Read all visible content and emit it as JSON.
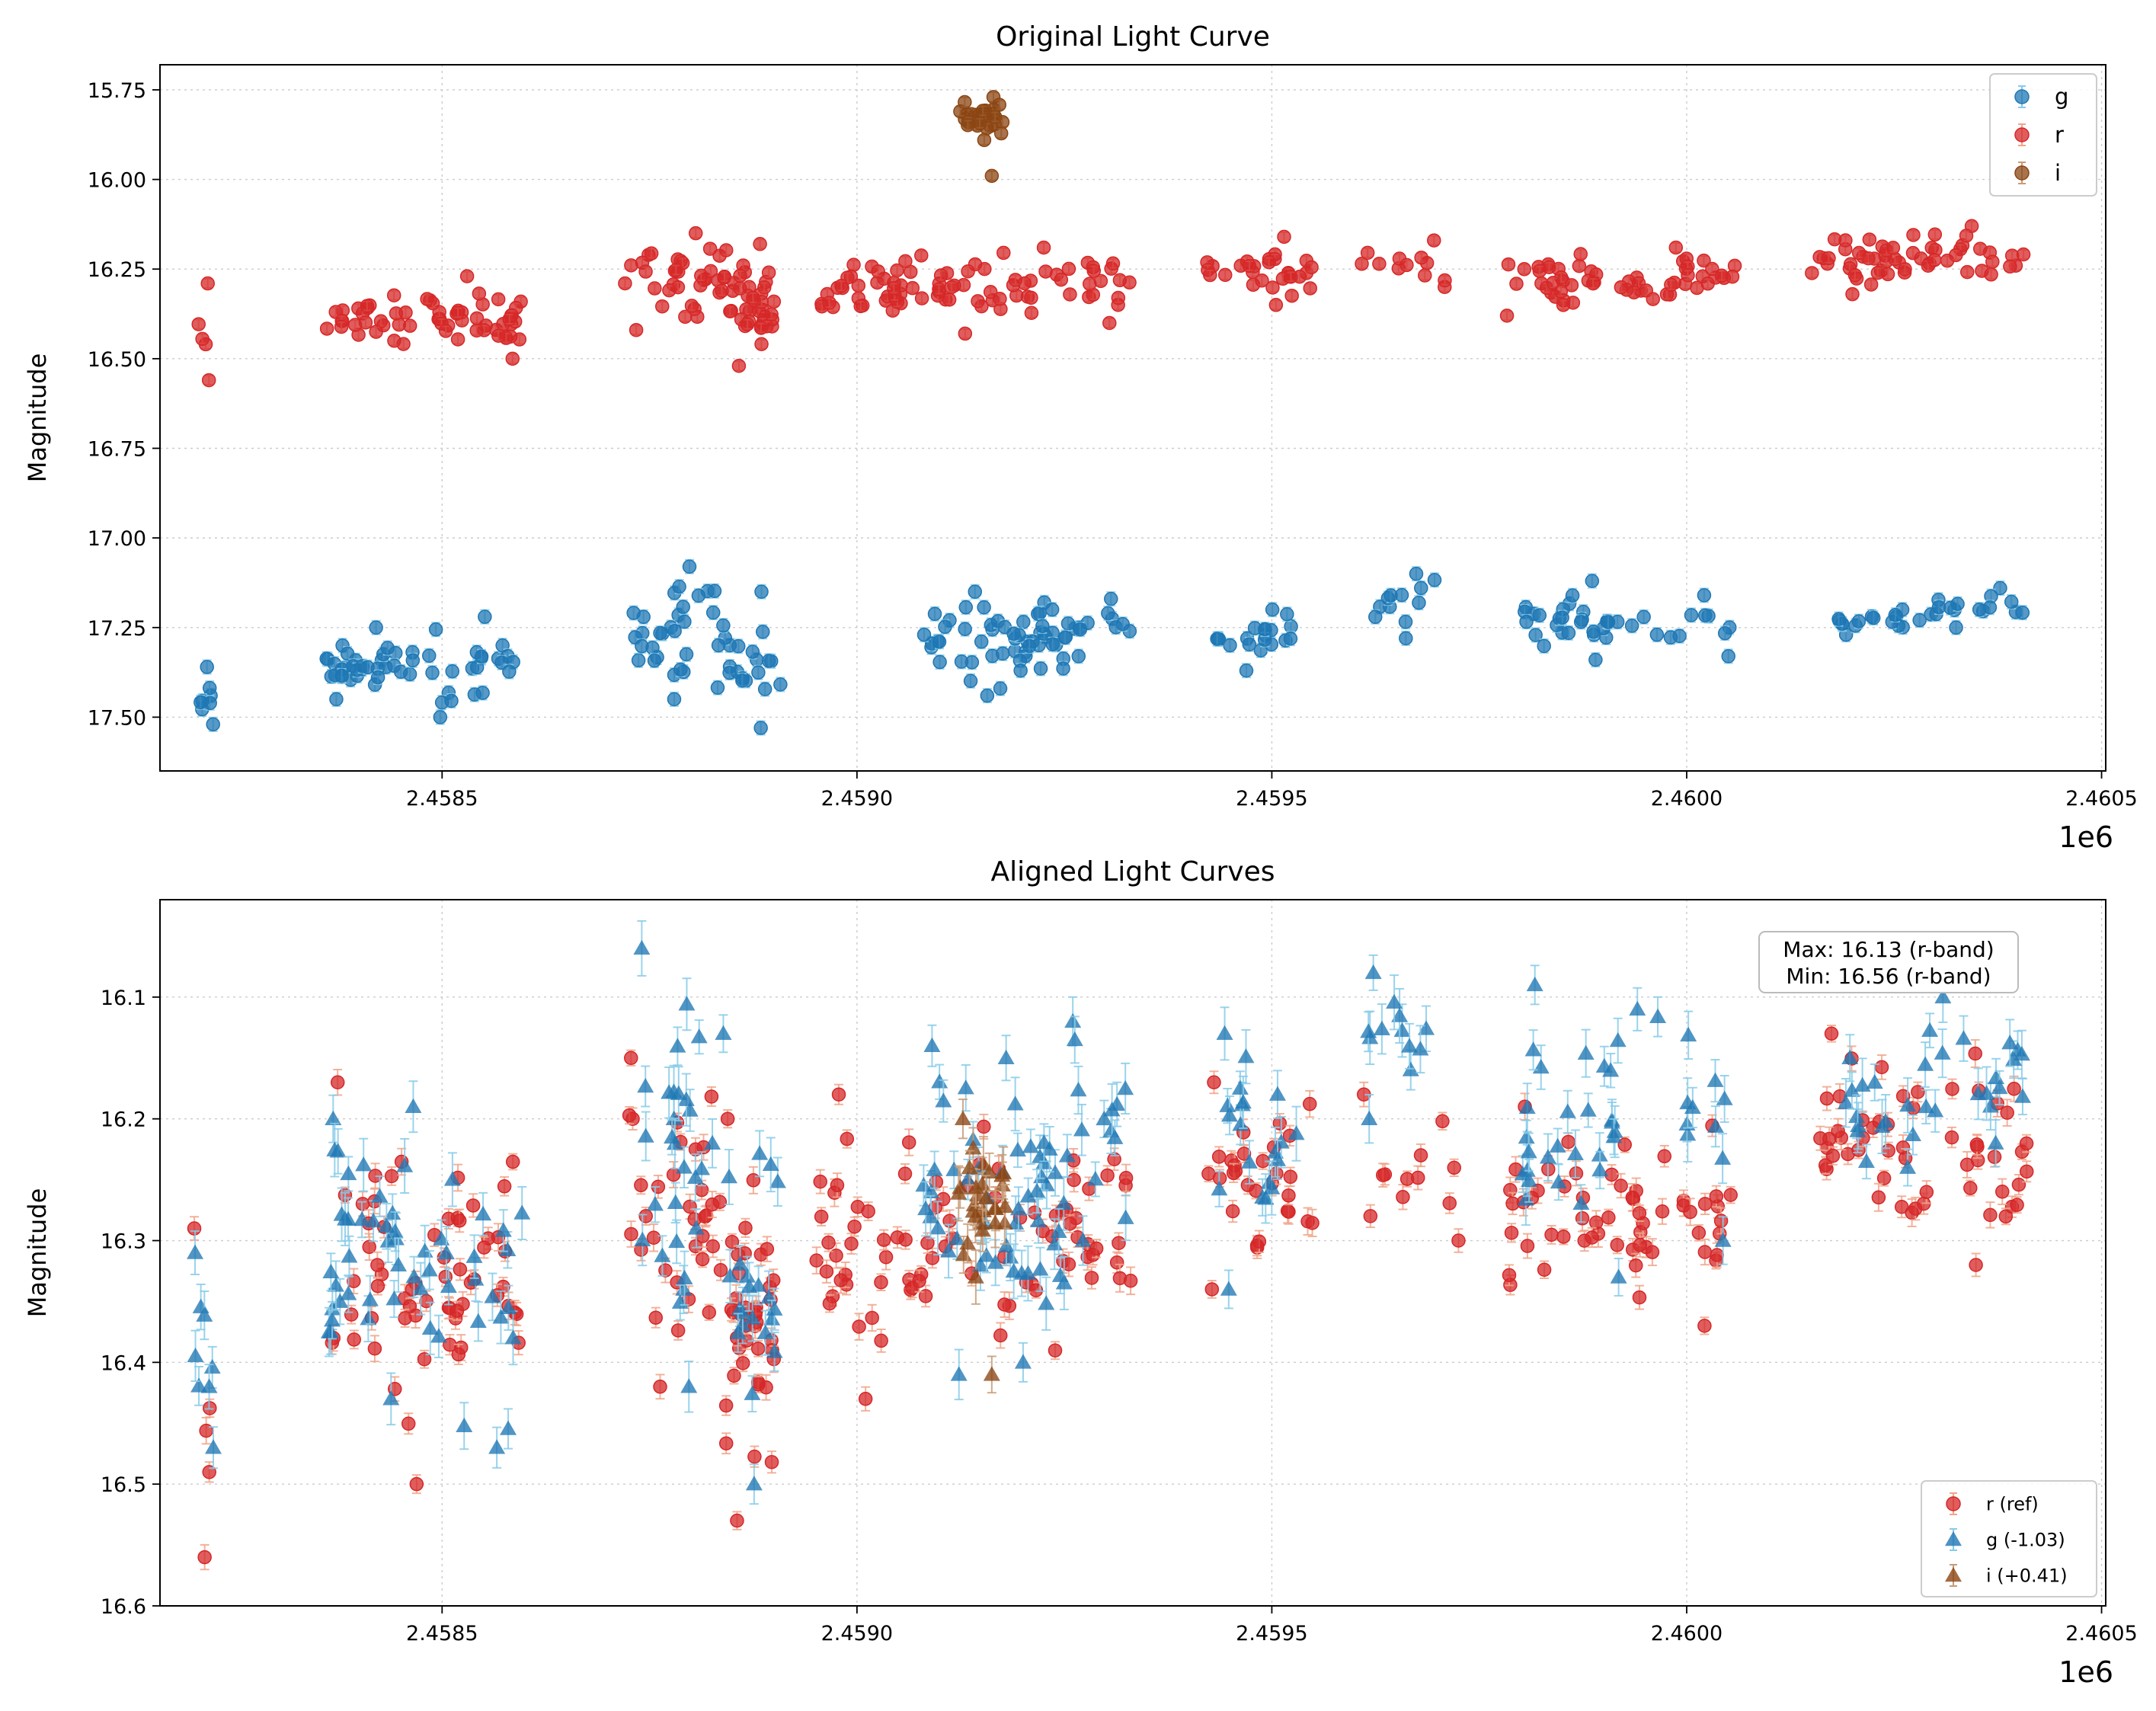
{
  "chart_data": [
    {
      "type": "scatter",
      "title": "Original Light Curve",
      "xlabel": "",
      "ylabel": "Magnitude",
      "x_offset_label": "1e6",
      "xlim": [
        2458160,
        2460505
      ],
      "ylim": [
        17.65,
        15.68
      ],
      "y_inverted": true,
      "xticks": [
        2458500,
        2459000,
        2459500,
        2460000,
        2460500
      ],
      "xtick_labels": [
        "2.4585",
        "2.4590",
        "2.4595",
        "2.4600",
        "2.4605"
      ],
      "yticks": [
        15.75,
        16.0,
        16.25,
        16.5,
        16.75,
        17.0,
        17.25,
        17.5
      ],
      "ytick_labels": [
        "15.75",
        "16.00",
        "16.25",
        "16.50",
        "16.75",
        "17.00",
        "17.25",
        "17.50"
      ],
      "grid": true,
      "legend_position": "top-right",
      "legend": [
        {
          "label": "g",
          "color": "#1f77b4",
          "marker": "circle"
        },
        {
          "label": "r",
          "color": "#d62728",
          "marker": "circle"
        },
        {
          "label": "i",
          "color": "#8b4513",
          "marker": "circle"
        }
      ],
      "series": [
        {
          "name": "g",
          "color": "#1f77b4",
          "err_color": "#87cbe9",
          "marker": "circle",
          "clusters": [
            {
              "x": [
                2458200,
                2458225
              ],
              "y": [
                17.36,
                17.52
              ],
              "n": 8
            },
            {
              "x": [
                2458360,
                2458450
              ],
              "y": [
                17.25,
                17.45
              ],
              "n": 30
            },
            {
              "x": [
                2458450,
                2458600
              ],
              "y": [
                17.22,
                17.5
              ],
              "n": 26
            },
            {
              "x": [
                2458730,
                2458830
              ],
              "y": [
                17.08,
                17.45
              ],
              "n": 28
            },
            {
              "x": [
                2458830,
                2458910
              ],
              "y": [
                17.15,
                17.53
              ],
              "n": 22
            },
            {
              "x": [
                2459080,
                2459170
              ],
              "y": [
                17.15,
                17.44
              ],
              "n": 22
            },
            {
              "x": [
                2459170,
                2459250
              ],
              "y": [
                17.18,
                17.42
              ],
              "n": 30
            },
            {
              "x": [
                2459250,
                2459330
              ],
              "y": [
                17.17,
                17.33
              ],
              "n": 14
            },
            {
              "x": [
                2459430,
                2459530
              ],
              "y": [
                17.2,
                17.37
              ],
              "n": 20
            },
            {
              "x": [
                2459610,
                2459700
              ],
              "y": [
                17.1,
                17.28
              ],
              "n": 12
            },
            {
              "x": [
                2459800,
                2459920
              ],
              "y": [
                17.12,
                17.34
              ],
              "n": 28
            },
            {
              "x": [
                2459920,
                2460060
              ],
              "y": [
                17.16,
                17.33
              ],
              "n": 12
            },
            {
              "x": [
                2460180,
                2460290
              ],
              "y": [
                17.2,
                17.27
              ],
              "n": 16
            },
            {
              "x": [
                2460290,
                2460410
              ],
              "y": [
                17.14,
                17.25
              ],
              "n": 16
            }
          ]
        },
        {
          "name": "r",
          "color": "#d62728",
          "err_color": "#f0a589",
          "marker": "circle",
          "clusters": [
            {
              "x": [
                2458200,
                2458225
              ],
              "y": [
                16.29,
                16.56
              ],
              "n": 5
            },
            {
              "x": [
                2458360,
                2458600
              ],
              "y": [
                16.27,
                16.5
              ],
              "n": 62
            },
            {
              "x": [
                2458720,
                2458840
              ],
              "y": [
                16.15,
                16.42
              ],
              "n": 34
            },
            {
              "x": [
                2458840,
                2458900
              ],
              "y": [
                16.18,
                16.52
              ],
              "n": 40
            },
            {
              "x": [
                2458950,
                2459330
              ],
              "y": [
                16.19,
                16.43
              ],
              "n": 86
            },
            {
              "x": [
                2459420,
                2459550
              ],
              "y": [
                16.16,
                16.35
              ],
              "n": 30
            },
            {
              "x": [
                2459600,
                2459730
              ],
              "y": [
                16.17,
                16.3
              ],
              "n": 12
            },
            {
              "x": [
                2459780,
                2460060
              ],
              "y": [
                16.19,
                16.38
              ],
              "n": 58
            },
            {
              "x": [
                2460150,
                2460410
              ],
              "y": [
                16.13,
                16.32
              ],
              "n": 56
            }
          ]
        },
        {
          "name": "i",
          "color": "#8b4513",
          "err_color": "#c89b77",
          "marker": "circle",
          "clusters": [
            {
              "x": [
                2459120,
                2459180
              ],
              "y": [
                15.77,
                15.89
              ],
              "n": 28
            },
            {
              "x": [
                2459160,
                2459165
              ],
              "y": [
                15.99,
                15.99
              ],
              "n": 1
            }
          ]
        }
      ]
    },
    {
      "type": "scatter",
      "title": "Aligned Light Curves",
      "xlabel": "",
      "ylabel": "Magnitude",
      "x_offset_label": "1e6",
      "xlim": [
        2458160,
        2460505
      ],
      "ylim": [
        16.6,
        16.02
      ],
      "y_inverted": true,
      "xticks": [
        2458500,
        2459000,
        2459500,
        2460000,
        2460500
      ],
      "xtick_labels": [
        "2.4585",
        "2.4590",
        "2.4595",
        "2.4600",
        "2.4605"
      ],
      "yticks": [
        16.1,
        16.2,
        16.3,
        16.4,
        16.5,
        16.6
      ],
      "ytick_labels": [
        "16.1",
        "16.2",
        "16.3",
        "16.4",
        "16.5",
        "16.6"
      ],
      "grid": true,
      "annotation": {
        "line1": "Max: 16.13 (r-band)",
        "line2": "Min: 16.56 (r-band)",
        "position": "top-right"
      },
      "legend_position": "bottom-right",
      "legend": [
        {
          "label": "r (ref)",
          "color": "#d62728",
          "marker": "circle"
        },
        {
          "label": "g (-1.03)",
          "color": "#1f77b4",
          "marker": "triangle"
        },
        {
          "label": "i (+0.41)",
          "color": "#8b4513",
          "marker": "triangle"
        }
      ],
      "series": [
        {
          "name": "r (ref)",
          "color": "#d62728",
          "err_color": "#f0a589",
          "marker": "circle",
          "clusters": [
            {
              "x": [
                2458200,
                2458225
              ],
              "y": [
                16.29,
                16.56
              ],
              "n": 5
            },
            {
              "x": [
                2458360,
                2458600
              ],
              "y": [
                16.17,
                16.5
              ],
              "n": 62
            },
            {
              "x": [
                2458720,
                2458840
              ],
              "y": [
                16.15,
                16.42
              ],
              "n": 34
            },
            {
              "x": [
                2458840,
                2458900
              ],
              "y": [
                16.2,
                16.53
              ],
              "n": 40
            },
            {
              "x": [
                2458950,
                2459330
              ],
              "y": [
                16.18,
                16.43
              ],
              "n": 86
            },
            {
              "x": [
                2459420,
                2459550
              ],
              "y": [
                16.17,
                16.34
              ],
              "n": 30
            },
            {
              "x": [
                2459600,
                2459730
              ],
              "y": [
                16.18,
                16.3
              ],
              "n": 12
            },
            {
              "x": [
                2459780,
                2460060
              ],
              "y": [
                16.19,
                16.37
              ],
              "n": 58
            },
            {
              "x": [
                2460150,
                2460410
              ],
              "y": [
                16.13,
                16.32
              ],
              "n": 56
            }
          ]
        },
        {
          "name": "g (-1.03)",
          "color": "#1f77b4",
          "err_color": "#87cbe9",
          "marker": "triangle",
          "clusters": [
            {
              "x": [
                2458200,
                2458225
              ],
              "y": [
                16.31,
                16.47
              ],
              "n": 8
            },
            {
              "x": [
                2458360,
                2458450
              ],
              "y": [
                16.2,
                16.43
              ],
              "n": 30
            },
            {
              "x": [
                2458450,
                2458600
              ],
              "y": [
                16.19,
                16.47
              ],
              "n": 26
            },
            {
              "x": [
                2458730,
                2458830
              ],
              "y": [
                16.06,
                16.42
              ],
              "n": 28
            },
            {
              "x": [
                2458830,
                2458910
              ],
              "y": [
                16.13,
                16.5
              ],
              "n": 22
            },
            {
              "x": [
                2459080,
                2459170
              ],
              "y": [
                16.14,
                16.41
              ],
              "n": 22
            },
            {
              "x": [
                2459170,
                2459250
              ],
              "y": [
                16.15,
                16.4
              ],
              "n": 30
            },
            {
              "x": [
                2459250,
                2459330
              ],
              "y": [
                16.12,
                16.3
              ],
              "n": 14
            },
            {
              "x": [
                2459430,
                2459530
              ],
              "y": [
                16.13,
                16.34
              ],
              "n": 20
            },
            {
              "x": [
                2459610,
                2459700
              ],
              "y": [
                16.08,
                16.2
              ],
              "n": 12
            },
            {
              "x": [
                2459800,
                2459920
              ],
              "y": [
                16.09,
                16.33
              ],
              "n": 28
            },
            {
              "x": [
                2459920,
                2460060
              ],
              "y": [
                16.11,
                16.3
              ],
              "n": 12
            },
            {
              "x": [
                2460180,
                2460290
              ],
              "y": [
                16.15,
                16.24
              ],
              "n": 16
            },
            {
              "x": [
                2460290,
                2460410
              ],
              "y": [
                16.1,
                16.22
              ],
              "n": 16
            }
          ]
        },
        {
          "name": "i (+0.41)",
          "color": "#8b4513",
          "err_color": "#c89b77",
          "marker": "triangle",
          "clusters": [
            {
              "x": [
                2459120,
                2459180
              ],
              "y": [
                16.2,
                16.33
              ],
              "n": 28
            },
            {
              "x": [
                2459160,
                2459165
              ],
              "y": [
                16.41,
                16.41
              ],
              "n": 1
            }
          ]
        }
      ]
    }
  ]
}
